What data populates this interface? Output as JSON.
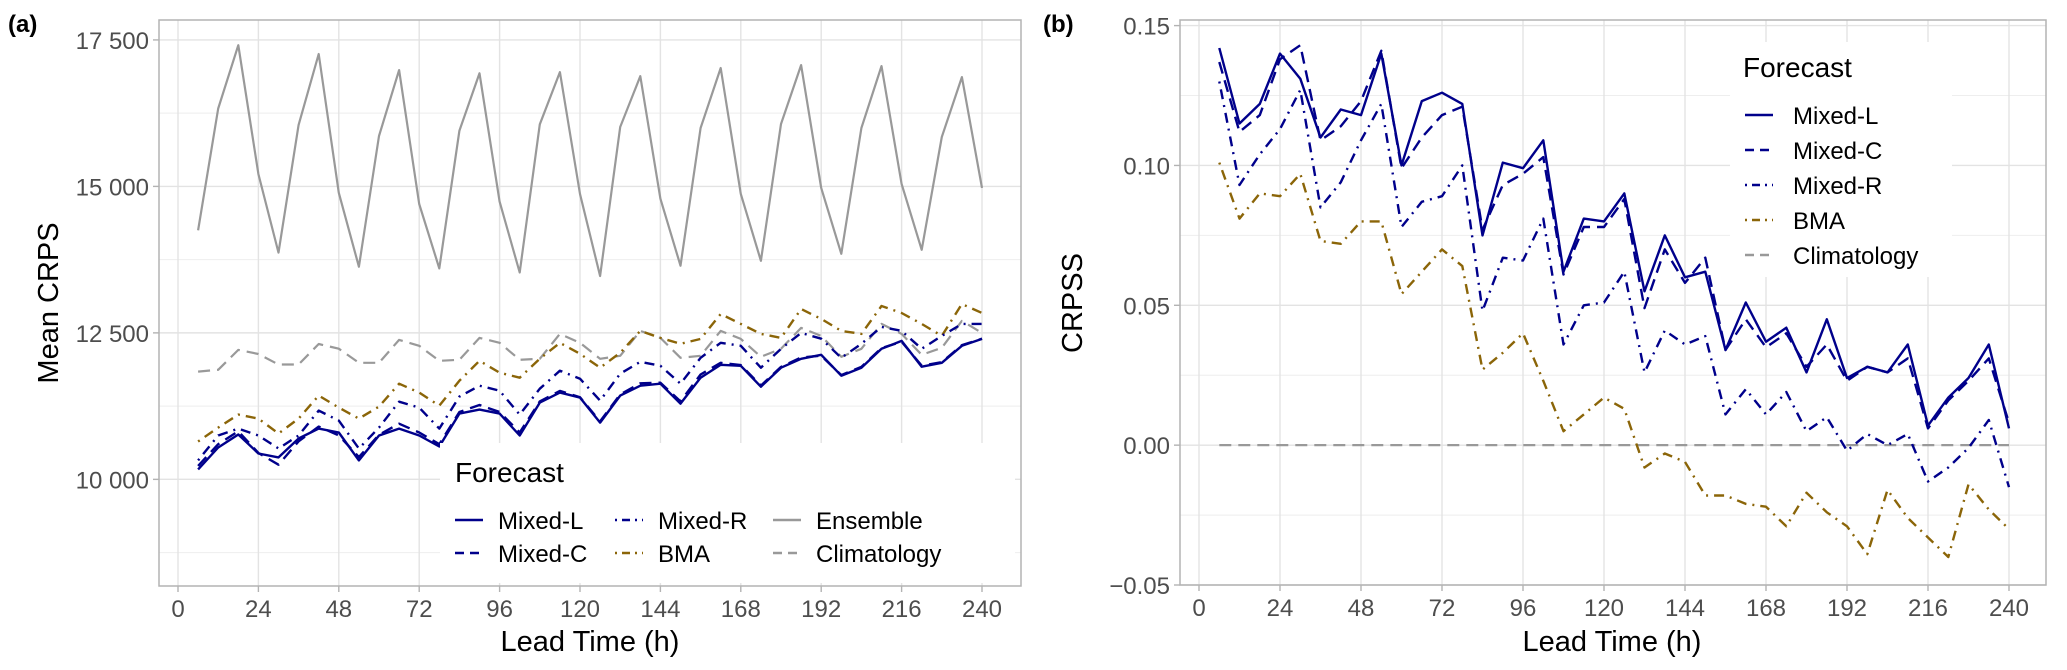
{
  "colors": {
    "Mixed-L": "#00008b",
    "Mixed-C": "#00008b",
    "Mixed-R": "#00008b",
    "BMA": "#8b6508",
    "Ensemble": "#999999",
    "Climatology": "#999999"
  },
  "dash": {
    "Mixed-L": "solid",
    "Mixed-C": "dashed",
    "Mixed-R": "dotdash",
    "BMA": "dotdash",
    "Ensemble": "solid",
    "Climatology": "dashed"
  },
  "chart_data": [
    {
      "id": "a",
      "panel_label": "(a)",
      "type": "line",
      "title": "",
      "xlabel": "Lead Time (h)",
      "ylabel": "Mean CRPS",
      "xlim": [
        -6,
        246
      ],
      "ylim": [
        8180,
        17840
      ],
      "xticks": [
        0,
        24,
        48,
        72,
        96,
        120,
        144,
        168,
        192,
        216,
        240
      ],
      "xtick_labels": [
        "0",
        "24",
        "48",
        "72",
        "96",
        "120",
        "144",
        "168",
        "192",
        "216",
        "240"
      ],
      "yticks": [
        10000,
        12500,
        15000,
        17500
      ],
      "ytick_labels": [
        "10 000",
        "12 500",
        "15 000",
        "17 500"
      ],
      "yminor": [
        8750,
        11250,
        13750,
        16250
      ],
      "grid": true,
      "legend": {
        "title": "Forecast",
        "placement": "bottom-right-inside",
        "columns": 3,
        "order": [
          "Mixed-L",
          "Mixed-C",
          "Mixed-R",
          "BMA",
          "Ensemble",
          "Climatology"
        ]
      },
      "x": [
        6,
        12,
        18,
        24,
        30,
        36,
        42,
        48,
        54,
        60,
        66,
        72,
        78,
        84,
        90,
        96,
        102,
        108,
        114,
        120,
        126,
        132,
        138,
        144,
        150,
        156,
        162,
        168,
        174,
        180,
        186,
        192,
        198,
        204,
        210,
        216,
        222,
        228,
        234,
        240
      ],
      "series": [
        {
          "name": "Ensemble",
          "values": [
            14250,
            16330,
            17410,
            15210,
            13870,
            16050,
            17260,
            14890,
            13630,
            15860,
            16985,
            14700,
            13600,
            15950,
            16930,
            14740,
            13530,
            16060,
            16950,
            14870,
            13470,
            16014,
            16880,
            14790,
            13646,
            15997,
            17020,
            14872,
            13731,
            16065,
            17070,
            14974,
            13850,
            15997,
            17053,
            15043,
            13918,
            15843,
            16865,
            14974
          ]
        },
        {
          "name": "Climatology",
          "values": [
            11840,
            11870,
            12210,
            12140,
            11960,
            11960,
            12310,
            12230,
            11990,
            11990,
            12380,
            12280,
            12024,
            12041,
            12415,
            12330,
            12041,
            12058,
            12483,
            12330,
            12058,
            12109,
            12534,
            12415,
            12075,
            12109,
            12534,
            12398,
            12092,
            12228,
            12585,
            12449,
            12092,
            12228,
            12653,
            12483,
            12126,
            12245,
            12704,
            12500
          ]
        },
        {
          "name": "BMA",
          "values": [
            10646,
            10884,
            11105,
            11037,
            10782,
            11037,
            11429,
            11224,
            11037,
            11241,
            11633,
            11480,
            11258,
            11684,
            12024,
            11820,
            11735,
            12058,
            12330,
            12143,
            11905,
            12160,
            12534,
            12415,
            12313,
            12398,
            12823,
            12653,
            12483,
            12415,
            12908,
            12738,
            12534,
            12483,
            12959,
            12840,
            12653,
            12449,
            12993,
            12840
          ]
        },
        {
          "name": "Mixed-R",
          "values": [
            10323,
            10748,
            10867,
            10748,
            10527,
            10748,
            11173,
            11003,
            10527,
            10884,
            11326,
            11224,
            10867,
            11412,
            11599,
            11514,
            11105,
            11548,
            11854,
            11718,
            11344,
            11803,
            12007,
            11939,
            11633,
            12075,
            12330,
            12280,
            11905,
            12228,
            12500,
            12400,
            12075,
            12313,
            12602,
            12534,
            12228,
            12449,
            12653,
            12653
          ]
        },
        {
          "name": "Mixed-C",
          "values": [
            10230,
            10600,
            10820,
            10450,
            10250,
            10650,
            10900,
            10750,
            10380,
            10760,
            10950,
            10800,
            10600,
            11150,
            11270,
            11150,
            10800,
            11330,
            11510,
            11400,
            10990,
            11450,
            11640,
            11650,
            11330,
            11790,
            11990,
            11950,
            11600,
            11920,
            12080,
            12110,
            11780,
            11920,
            12240,
            12350,
            11940,
            12000,
            12290,
            12400
          ]
        },
        {
          "name": "Mixed-L",
          "values": [
            10170,
            10544,
            10765,
            10442,
            10374,
            10697,
            10867,
            10799,
            10323,
            10748,
            10867,
            10748,
            10561,
            11122,
            11190,
            11122,
            10748,
            11310,
            11480,
            11395,
            10969,
            11429,
            11599,
            11633,
            11293,
            11735,
            11956,
            11939,
            11582,
            11905,
            12058,
            12126,
            11769,
            11905,
            12228,
            12364,
            11922,
            11990,
            12279,
            12398
          ]
        }
      ]
    },
    {
      "id": "b",
      "panel_label": "(b)",
      "type": "line",
      "title": "",
      "xlabel": "Lead Time (h)",
      "ylabel": "CRPSS",
      "xlim": [
        -6,
        246
      ],
      "ylim": [
        -0.05,
        0.152
      ],
      "xticks": [
        0,
        24,
        48,
        72,
        96,
        120,
        144,
        168,
        192,
        216,
        240
      ],
      "xtick_labels": [
        "0",
        "24",
        "48",
        "72",
        "96",
        "120",
        "144",
        "168",
        "192",
        "216",
        "240"
      ],
      "yticks": [
        -0.05,
        0.0,
        0.05,
        0.1,
        0.15
      ],
      "ytick_labels": [
        "−0.05",
        "0.00",
        "0.05",
        "0.10",
        "0.15"
      ],
      "yminor": [
        -0.025,
        0.025,
        0.075,
        0.125
      ],
      "grid": true,
      "legend": {
        "title": "Forecast",
        "placement": "top-right-inside",
        "columns": 1,
        "order": [
          "Mixed-L",
          "Mixed-C",
          "Mixed-R",
          "BMA",
          "Climatology"
        ]
      },
      "x": [
        6,
        12,
        18,
        24,
        30,
        36,
        42,
        48,
        54,
        60,
        66,
        72,
        78,
        84,
        90,
        96,
        102,
        108,
        114,
        120,
        126,
        132,
        138,
        144,
        150,
        156,
        162,
        168,
        174,
        180,
        186,
        192,
        198,
        204,
        210,
        216,
        222,
        228,
        234,
        240
      ],
      "series": [
        {
          "name": "Climatology",
          "values": [
            0,
            0,
            0,
            0,
            0,
            0,
            0,
            0,
            0,
            0,
            0,
            0,
            0,
            0,
            0,
            0,
            0,
            0,
            0,
            0,
            0,
            0,
            0,
            0,
            0,
            0,
            0,
            0,
            0,
            0,
            0,
            0,
            0,
            0,
            0,
            0,
            0,
            0,
            0,
            0
          ]
        },
        {
          "name": "BMA",
          "values": [
            0.101,
            0.081,
            0.09,
            0.089,
            0.097,
            0.073,
            0.072,
            0.08,
            0.08,
            0.054,
            0.062,
            0.07,
            0.064,
            0.027,
            0.033,
            0.04,
            0.023,
            0.005,
            0.011,
            0.017,
            0.013,
            -0.008,
            -0.003,
            -0.006,
            -0.018,
            -0.018,
            -0.021,
            -0.022,
            -0.029,
            -0.017,
            -0.024,
            -0.029,
            -0.039,
            -0.016,
            -0.026,
            -0.033,
            -0.04,
            -0.014,
            -0.023,
            -0.03
          ]
        },
        {
          "name": "Mixed-R",
          "values": [
            0.13,
            0.093,
            0.104,
            0.113,
            0.127,
            0.085,
            0.094,
            0.109,
            0.122,
            0.078,
            0.087,
            0.089,
            0.1,
            0.048,
            0.067,
            0.066,
            0.081,
            0.036,
            0.05,
            0.051,
            0.062,
            0.026,
            0.041,
            0.036,
            0.039,
            0.011,
            0.02,
            0.011,
            0.019,
            0.005,
            0.01,
            -0.002,
            0.004,
            0.0,
            0.004,
            -0.013,
            -0.008,
            -0.001,
            0.009,
            -0.015
          ]
        },
        {
          "name": "Mixed-C",
          "values": [
            0.137,
            0.112,
            0.118,
            0.138,
            0.143,
            0.109,
            0.114,
            0.123,
            0.141,
            0.099,
            0.11,
            0.118,
            0.121,
            0.077,
            0.093,
            0.097,
            0.103,
            0.061,
            0.078,
            0.078,
            0.088,
            0.049,
            0.07,
            0.058,
            0.067,
            0.034,
            0.045,
            0.035,
            0.04,
            0.028,
            0.036,
            0.023,
            0.028,
            0.026,
            0.031,
            0.006,
            0.016,
            0.023,
            0.031,
            0.008
          ]
        },
        {
          "name": "Mixed-L",
          "values": [
            0.142,
            0.115,
            0.122,
            0.14,
            0.131,
            0.11,
            0.12,
            0.118,
            0.14,
            0.1,
            0.123,
            0.126,
            0.122,
            0.075,
            0.101,
            0.099,
            0.109,
            0.062,
            0.081,
            0.08,
            0.09,
            0.055,
            0.075,
            0.06,
            0.062,
            0.034,
            0.051,
            0.037,
            0.042,
            0.026,
            0.045,
            0.024,
            0.028,
            0.026,
            0.036,
            0.007,
            0.017,
            0.024,
            0.036,
            0.006
          ]
        }
      ]
    }
  ]
}
